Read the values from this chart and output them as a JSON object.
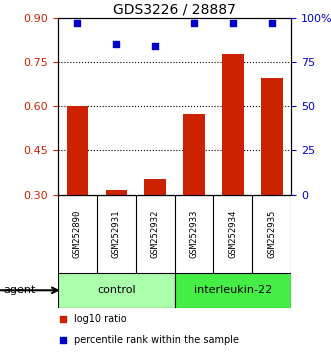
{
  "title": "GDS3226 / 28887",
  "categories": [
    "GSM252890",
    "GSM252931",
    "GSM252932",
    "GSM252933",
    "GSM252934",
    "GSM252935"
  ],
  "bar_values": [
    0.601,
    0.315,
    0.352,
    0.572,
    0.778,
    0.697
  ],
  "bar_baseline": 0.3,
  "scatter_values": [
    97,
    85,
    84,
    97,
    97,
    97
  ],
  "bar_color": "#cc2200",
  "scatter_color": "#0000cc",
  "left_yticks": [
    0.3,
    0.45,
    0.6,
    0.75,
    0.9
  ],
  "left_ylim": [
    0.3,
    0.9
  ],
  "right_yticks": [
    0,
    25,
    50,
    75,
    100
  ],
  "right_ylim": [
    0,
    100
  ],
  "groups": [
    {
      "label": "control",
      "indices": [
        0,
        1,
        2
      ],
      "color": "#aaffaa"
    },
    {
      "label": "interleukin-22",
      "indices": [
        3,
        4,
        5
      ],
      "color": "#44ee44"
    }
  ],
  "agent_label": "agent",
  "legend_bar_label": "log10 ratio",
  "legend_scatter_label": "percentile rank within the sample",
  "background_color": "#ffffff",
  "figsize": [
    3.31,
    3.54
  ],
  "dpi": 100
}
